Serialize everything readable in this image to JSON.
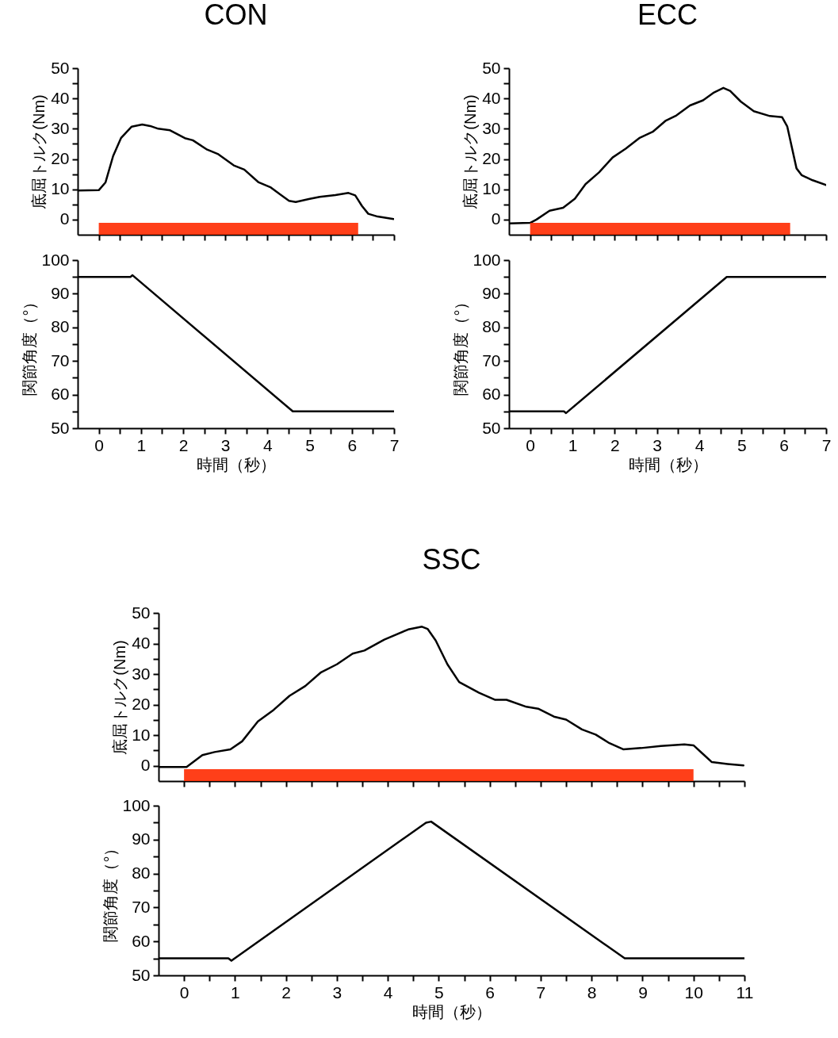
{
  "chart_data": [
    {
      "type": "line",
      "title": "CON",
      "ylabel": "底屈トルク(Nm)",
      "tick_labels": "y",
      "xlim": [
        -0.5,
        7
      ],
      "ylim": [
        -5,
        50
      ],
      "xticks": [
        0,
        {
          "value": 0.5,
          "label": null
        },
        1,
        {
          "value": 1.5,
          "label": null
        },
        2,
        {
          "value": 2.5,
          "label": null
        },
        3,
        {
          "value": 3.5,
          "label": null
        },
        4,
        {
          "value": 4.5,
          "label": null
        },
        5,
        {
          "value": 5.5,
          "label": null
        },
        6,
        {
          "value": 6.5,
          "label": null
        },
        7
      ],
      "yticks": [
        0,
        {
          "value": 5,
          "label": null
        },
        10,
        {
          "value": 15,
          "label": null
        },
        20,
        {
          "value": 25,
          "label": null
        },
        30,
        {
          "value": 35,
          "label": null
        },
        40,
        {
          "value": 45,
          "label": null
        },
        50
      ],
      "bands": [
        {
          "axis": "x",
          "from": 0,
          "to": 6.15,
          "color": "#ff2a00"
        }
      ],
      "series": [
        {
          "color": "#000000",
          "x": [
            -0.5,
            0,
            0.16,
            0.34,
            0.53,
            0.78,
            1.03,
            1.22,
            1.41,
            1.69,
            2.04,
            2.23,
            2.57,
            2.82,
            3.2,
            3.45,
            3.79,
            4.08,
            4.29,
            4.51,
            4.67,
            4.98,
            5.24,
            5.61,
            5.92,
            6.08,
            6.24,
            6.39,
            6.61,
            6.99
          ],
          "values": [
            9.6,
            9.7,
            12.3,
            21,
            27,
            30.7,
            31.4,
            30.9,
            30,
            29.5,
            26.9,
            26.2,
            23.1,
            21.7,
            17.9,
            16.5,
            12.3,
            10.6,
            8.4,
            6.2,
            5.8,
            6.8,
            7.5,
            8.1,
            8.8,
            8,
            4.5,
            1.9,
            1,
            0.2
          ]
        }
      ]
    },
    {
      "type": "line",
      "xlabel": "時間（秒）",
      "ylabel": "関節角度（°）",
      "xlim": [
        -0.5,
        7
      ],
      "ylim": [
        50,
        100
      ],
      "xticks": [
        0,
        {
          "value": 0.5,
          "label": null
        },
        1,
        {
          "value": 1.5,
          "label": null
        },
        2,
        {
          "value": 2.5,
          "label": null
        },
        3,
        {
          "value": 3.5,
          "label": null
        },
        4,
        {
          "value": 4.5,
          "label": null
        },
        5,
        {
          "value": 5.5,
          "label": null
        },
        6,
        {
          "value": 6.5,
          "label": null
        },
        7
      ],
      "yticks": [
        50,
        {
          "value": 55,
          "label": null
        },
        60,
        {
          "value": 65,
          "label": null
        },
        70,
        {
          "value": 75,
          "label": null
        },
        80,
        {
          "value": 85,
          "label": null
        },
        90,
        {
          "value": 95,
          "label": null
        },
        100
      ],
      "series": [
        {
          "color": "#000000",
          "x": [
            -0.5,
            0.75,
            0.8,
            4.6,
            7
          ],
          "values": [
            95,
            95,
            95.5,
            55,
            55
          ]
        }
      ]
    },
    {
      "type": "line",
      "title": "ECC",
      "ylabel": "底屈トルク(Nm)",
      "tick_labels": "y",
      "xlim": [
        -0.5,
        7
      ],
      "ylim": [
        -5,
        50
      ],
      "xticks": [
        0,
        {
          "value": 0.5,
          "label": null
        },
        1,
        {
          "value": 1.5,
          "label": null
        },
        2,
        {
          "value": 2.5,
          "label": null
        },
        3,
        {
          "value": 3.5,
          "label": null
        },
        4,
        {
          "value": 4.5,
          "label": null
        },
        5,
        {
          "value": 5.5,
          "label": null
        },
        6,
        {
          "value": 6.5,
          "label": null
        },
        7
      ],
      "yticks": [
        0,
        {
          "value": 5,
          "label": null
        },
        10,
        {
          "value": 15,
          "label": null
        },
        20,
        {
          "value": 25,
          "label": null
        },
        30,
        {
          "value": 35,
          "label": null
        },
        40,
        {
          "value": 45,
          "label": null
        },
        50
      ],
      "bands": [
        {
          "axis": "x",
          "from": 0,
          "to": 6.15,
          "color": "#ff2a00"
        }
      ],
      "series": [
        {
          "color": "#000000",
          "x": [
            -0.5,
            0,
            0.15,
            0.46,
            0.78,
            1.06,
            1.31,
            1.63,
            1.95,
            2.26,
            2.58,
            2.9,
            3.21,
            3.46,
            3.78,
            4.09,
            4.35,
            4.57,
            4.73,
            4.98,
            5.29,
            5.67,
            5.96,
            6.08,
            6.3,
            6.42,
            6.68,
            7
          ],
          "values": [
            -1.3,
            -1.1,
            0,
            2.9,
            3.9,
            6.9,
            11.7,
            15.6,
            20.5,
            23.4,
            26.9,
            29,
            32.7,
            34.4,
            37.7,
            39.4,
            42,
            43.5,
            42.5,
            39,
            35.8,
            34.2,
            33.8,
            30.8,
            16.9,
            14.7,
            13,
            11.4
          ]
        }
      ]
    },
    {
      "type": "line",
      "xlabel": "時間（秒）",
      "ylabel": "関節角度（°）",
      "xlim": [
        -0.5,
        7
      ],
      "ylim": [
        50,
        100
      ],
      "xticks": [
        0,
        {
          "value": 0.5,
          "label": null
        },
        1,
        {
          "value": 1.5,
          "label": null
        },
        2,
        {
          "value": 2.5,
          "label": null
        },
        3,
        {
          "value": 3.5,
          "label": null
        },
        4,
        {
          "value": 4.5,
          "label": null
        },
        5,
        {
          "value": 5.5,
          "label": null
        },
        6,
        {
          "value": 6.5,
          "label": null
        },
        7
      ],
      "yticks": [
        50,
        {
          "value": 55,
          "label": null
        },
        60,
        {
          "value": 65,
          "label": null
        },
        70,
        {
          "value": 75,
          "label": null
        },
        80,
        {
          "value": 85,
          "label": null
        },
        90,
        {
          "value": 95,
          "label": null
        },
        100
      ],
      "series": [
        {
          "color": "#000000",
          "x": [
            -0.5,
            0.8,
            0.85,
            4.65,
            7
          ],
          "values": [
            55,
            55,
            54.5,
            95,
            95
          ]
        }
      ]
    },
    {
      "type": "line",
      "title": "SSC",
      "ylabel": "底屈トルク(Nm)",
      "tick_labels": "y",
      "xlim": [
        -0.5,
        11
      ],
      "ylim": [
        -5,
        50
      ],
      "xticks": [
        0,
        {
          "value": 0.5,
          "label": null
        },
        1,
        {
          "value": 1.5,
          "label": null
        },
        2,
        {
          "value": 2.5,
          "label": null
        },
        3,
        {
          "value": 3.5,
          "label": null
        },
        4,
        {
          "value": 4.5,
          "label": null
        },
        5,
        {
          "value": 5.5,
          "label": null
        },
        6,
        {
          "value": 6.5,
          "label": null
        },
        7,
        {
          "value": 7.5,
          "label": null
        },
        8,
        {
          "value": 8.5,
          "label": null
        },
        9,
        {
          "value": 9.5,
          "label": null
        },
        10,
        {
          "value": 10.5,
          "label": null
        },
        11
      ],
      "yticks": [
        0,
        {
          "value": 5,
          "label": null
        },
        10,
        {
          "value": 15,
          "label": null
        },
        20,
        {
          "value": 25,
          "label": null
        },
        30,
        {
          "value": 35,
          "label": null
        },
        40,
        {
          "value": 45,
          "label": null
        },
        50
      ],
      "bands": [
        {
          "axis": "x",
          "from": 0,
          "to": 10,
          "color": "#ff2a00"
        }
      ],
      "series": [
        {
          "color": "#000000",
          "x": [
            -0.5,
            0.05,
            0.36,
            0.6,
            0.91,
            1.14,
            1.45,
            1.76,
            2.07,
            2.38,
            2.69,
            3,
            3.31,
            3.54,
            3.93,
            4.4,
            4.67,
            4.78,
            4.94,
            5.17,
            5.4,
            5.79,
            6.1,
            6.33,
            6.72,
            6.95,
            7.26,
            7.5,
            7.81,
            8.08,
            8.35,
            8.62,
            8.97,
            9.36,
            9.82,
            10,
            10.21,
            10.36,
            10.67,
            10.98
          ],
          "values": [
            -0.4,
            -0.4,
            3.5,
            4.5,
            5.4,
            8,
            14.5,
            18.3,
            22.9,
            26.1,
            30.6,
            33.2,
            36.7,
            37.7,
            41.3,
            44.6,
            45.5,
            44.8,
            41,
            33.2,
            27.4,
            23.9,
            21.6,
            21.6,
            19.3,
            18.7,
            16.1,
            15.1,
            11.9,
            10.2,
            7.4,
            5.4,
            5.8,
            6.5,
            7,
            6.7,
            3.5,
            1.2,
            0.6,
            0.1
          ]
        }
      ]
    },
    {
      "type": "line",
      "xlabel": "時間（秒）",
      "ylabel": "関節角度（°）",
      "xlim": [
        -0.5,
        11
      ],
      "ylim": [
        50,
        100
      ],
      "xticks": [
        0,
        {
          "value": 0.5,
          "label": null
        },
        1,
        {
          "value": 1.5,
          "label": null
        },
        2,
        {
          "value": 2.5,
          "label": null
        },
        3,
        {
          "value": 3.5,
          "label": null
        },
        4,
        {
          "value": 4.5,
          "label": null
        },
        5,
        {
          "value": 5.5,
          "label": null
        },
        6,
        {
          "value": 6.5,
          "label": null
        },
        7,
        {
          "value": 7.5,
          "label": null
        },
        8,
        {
          "value": 8.5,
          "label": null
        },
        9,
        {
          "value": 9.5,
          "label": null
        },
        10,
        {
          "value": 10.5,
          "label": null
        },
        11
      ],
      "yticks": [
        50,
        {
          "value": 55,
          "label": null
        },
        60,
        {
          "value": 65,
          "label": null
        },
        70,
        {
          "value": 75,
          "label": null
        },
        80,
        {
          "value": 85,
          "label": null
        },
        90,
        {
          "value": 95,
          "label": null
        },
        100
      ],
      "series": [
        {
          "color": "#000000",
          "x": [
            -0.5,
            0.87,
            0.93,
            4.75,
            4.85,
            8.65,
            11
          ],
          "values": [
            55,
            55,
            54.3,
            95,
            95.3,
            55,
            55
          ]
        }
      ]
    }
  ]
}
